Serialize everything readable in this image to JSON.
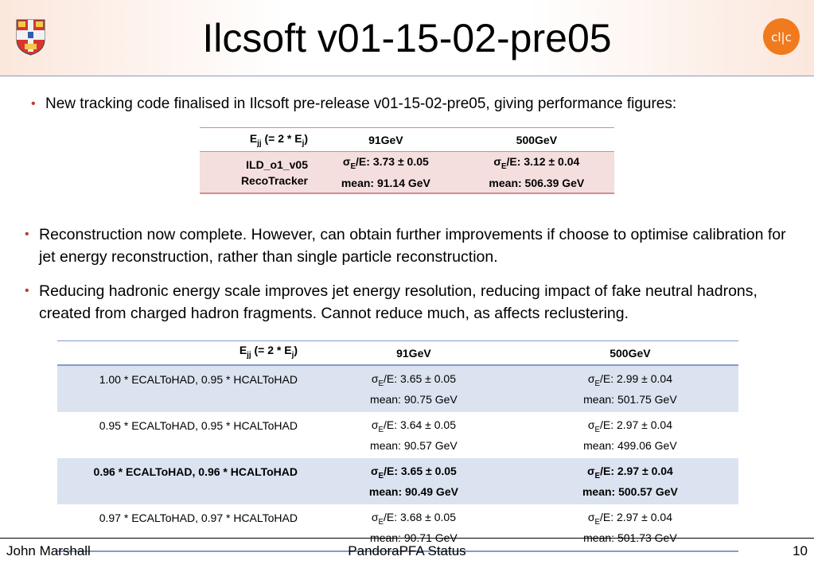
{
  "slide": {
    "title": "Ilcsoft v01-15-02-pre05",
    "logos": [
      "cambridge-crest-icon",
      "clic-logo-icon"
    ],
    "bullets": [
      "New tracking code finalised in Ilcsoft pre-release v01-15-02-pre05, giving performance figures:",
      "Reconstruction now complete. However, can obtain further improvements if choose to optimise calibration for jet energy reconstruction, rather than single particle reconstruction.",
      "Reducing hadronic energy scale improves jet energy resolution, reducing impact of fake neutral hadrons, created from charged hadron fragments. Cannot reduce much, as affects reclustering."
    ],
    "accent_colors": {
      "bullet": "#c0392b",
      "table1_rule": "#d98a8a",
      "table1_fill": "#f4dede",
      "table2_rule": "#7f9ccf",
      "table2_fill": "#dbe3f0"
    }
  },
  "table1": {
    "header_label": {
      "E": "E",
      "sub1": "jj",
      "mid": " (= 2 * E",
      "sub2": "j",
      "end": ")"
    },
    "col_headers": [
      "91GeV",
      "500GeV"
    ],
    "row_label_line1": "ILD_o1_v05",
    "row_label_line2": "RecoTracker",
    "cells": [
      {
        "sigma": "/E: 3.73 ± 0.05",
        "mean": "mean: 91.14 GeV"
      },
      {
        "sigma": "/E: 3.12 ± 0.04",
        "mean": "mean: 506.39 GeV"
      }
    ]
  },
  "table2": {
    "header_label": {
      "E": "E",
      "sub1": "jj",
      "mid": " (= 2 * E",
      "sub2": "j",
      "end": ")"
    },
    "col_headers": [
      "91GeV",
      "500GeV"
    ],
    "rows": [
      {
        "label": "1.00 * ECALToHAD, 0.95 * HCALToHAD",
        "c91_sigma": "/E: 3.65 ± 0.05",
        "c91_mean": "mean: 90.75 GeV",
        "c500_sigma": "/E: 2.99 ± 0.04",
        "c500_mean": "mean: 501.75 GeV"
      },
      {
        "label": "0.95 * ECALToHAD, 0.95 * HCALToHAD",
        "c91_sigma": "/E: 3.64 ± 0.05",
        "c91_mean": "mean: 90.57 GeV",
        "c500_sigma": "/E: 2.97 ± 0.04",
        "c500_mean": "mean: 499.06 GeV"
      },
      {
        "label": "0.96 * ECALToHAD, 0.96 * HCALToHAD",
        "c91_sigma": "/E: 3.65 ± 0.05",
        "c91_mean": "mean: 90.49 GeV",
        "c500_sigma": "/E: 2.97 ± 0.04",
        "c500_mean": "mean: 500.57 GeV"
      },
      {
        "label": "0.97 * ECALToHAD, 0.97 * HCALToHAD",
        "c91_sigma": "/E: 3.68 ± 0.05",
        "c91_mean": "mean: 90.71 GeV",
        "c500_sigma": "/E: 2.97 ± 0.04",
        "c500_mean": "mean: 501.73 GeV"
      }
    ]
  },
  "symbols": {
    "sigma": "σ",
    "sub_e": "E"
  },
  "footer": {
    "author": "John Marshall",
    "talk": "PandoraPFA Status",
    "page": "10"
  }
}
